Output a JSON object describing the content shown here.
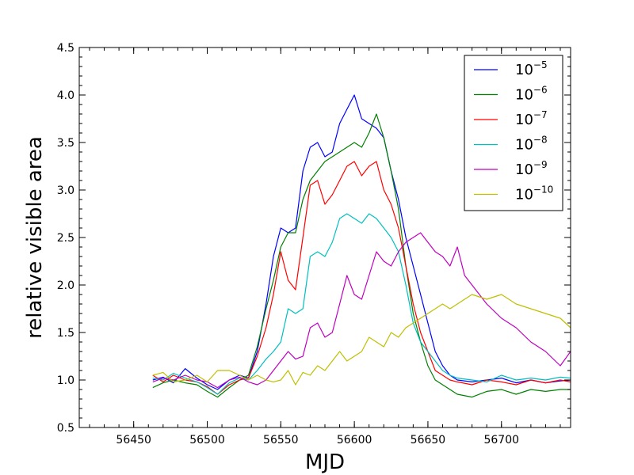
{
  "chart_data": {
    "type": "line",
    "title": "",
    "xlabel": "MJD",
    "ylabel": "relative visible area",
    "xlim": [
      56413,
      56747
    ],
    "ylim": [
      0.5,
      4.5
    ],
    "xticks": [
      56450,
      56500,
      56550,
      56600,
      56650,
      56700
    ],
    "yticks": [
      0.5,
      1.0,
      1.5,
      2.0,
      2.5,
      3.0,
      3.5,
      4.0,
      4.5
    ],
    "grid": false,
    "legend_position": "top-right",
    "series": [
      {
        "name": "10",
        "name_exponent": "−5",
        "color": "#0000ff",
        "x": [
          56463,
          56470,
          56477,
          56485,
          56493,
          56500,
          56507,
          56515,
          56522,
          56528,
          56534,
          56540,
          56545,
          56550,
          56555,
          56560,
          56565,
          56570,
          56575,
          56580,
          56585,
          56590,
          56595,
          56600,
          56605,
          56610,
          56615,
          56620,
          56625,
          56630,
          56635,
          56640,
          56645,
          56650,
          56655,
          56660,
          56665,
          56670,
          56680,
          56690,
          56700,
          56710,
          56720,
          56730,
          56740,
          56747
        ],
        "y": [
          1.0,
          1.03,
          0.97,
          1.12,
          1.02,
          0.95,
          0.9,
          1.0,
          1.05,
          1.02,
          1.3,
          1.8,
          2.3,
          2.6,
          2.55,
          2.6,
          3.2,
          3.45,
          3.5,
          3.35,
          3.4,
          3.7,
          3.85,
          4.0,
          3.75,
          3.7,
          3.65,
          3.55,
          3.2,
          2.9,
          2.5,
          2.2,
          1.9,
          1.6,
          1.3,
          1.15,
          1.05,
          1.0,
          0.98,
          1.0,
          1.02,
          0.97,
          1.0,
          0.97,
          0.99,
          1.0
        ]
      },
      {
        "name": "10",
        "name_exponent": "−6",
        "color": "#008000",
        "x": [
          56463,
          56470,
          56477,
          56485,
          56493,
          56500,
          56507,
          56515,
          56522,
          56528,
          56534,
          56540,
          56545,
          56550,
          56555,
          56560,
          56565,
          56570,
          56575,
          56580,
          56585,
          56590,
          56595,
          56600,
          56605,
          56610,
          56615,
          56620,
          56625,
          56630,
          56635,
          56640,
          56645,
          56650,
          56655,
          56660,
          56665,
          56670,
          56680,
          56690,
          56700,
          56710,
          56720,
          56730,
          56740,
          56747
        ],
        "y": [
          0.92,
          0.97,
          1.0,
          0.97,
          0.95,
          0.88,
          0.82,
          0.92,
          1.0,
          1.05,
          1.35,
          1.75,
          2.05,
          2.4,
          2.55,
          2.55,
          2.9,
          3.1,
          3.2,
          3.3,
          3.35,
          3.4,
          3.45,
          3.5,
          3.45,
          3.6,
          3.8,
          3.55,
          3.2,
          2.8,
          2.2,
          1.7,
          1.4,
          1.15,
          1.0,
          0.95,
          0.9,
          0.85,
          0.82,
          0.88,
          0.9,
          0.85,
          0.9,
          0.88,
          0.9,
          0.9
        ]
      },
      {
        "name": "10",
        "name_exponent": "−7",
        "color": "#ff0000",
        "x": [
          56463,
          56470,
          56477,
          56485,
          56493,
          56500,
          56507,
          56515,
          56522,
          56528,
          56534,
          56540,
          56545,
          56550,
          56555,
          56560,
          56565,
          56570,
          56575,
          56580,
          56585,
          56590,
          56595,
          56600,
          56605,
          56610,
          56615,
          56620,
          56625,
          56630,
          56635,
          56640,
          56645,
          56650,
          56655,
          56660,
          56665,
          56670,
          56680,
          56690,
          56700,
          56710,
          56720,
          56730,
          56740,
          56747
        ],
        "y": [
          1.05,
          0.98,
          1.05,
          1.0,
          0.98,
          0.93,
          0.85,
          0.95,
          1.0,
          1.02,
          1.25,
          1.55,
          1.9,
          2.35,
          2.05,
          1.95,
          2.5,
          3.05,
          3.1,
          2.85,
          2.95,
          3.1,
          3.25,
          3.3,
          3.15,
          3.25,
          3.3,
          3.0,
          2.85,
          2.6,
          2.2,
          1.8,
          1.5,
          1.3,
          1.1,
          1.05,
          1.0,
          0.98,
          0.95,
          1.0,
          0.98,
          0.95,
          1.0,
          0.97,
          1.0,
          0.98
        ]
      },
      {
        "name": "10",
        "name_exponent": "−8",
        "color": "#00bfbf",
        "x": [
          56463,
          56470,
          56477,
          56485,
          56493,
          56500,
          56507,
          56515,
          56522,
          56528,
          56534,
          56540,
          56545,
          56550,
          56555,
          56560,
          56565,
          56570,
          56575,
          56580,
          56585,
          56590,
          56595,
          56600,
          56605,
          56610,
          56615,
          56620,
          56625,
          56630,
          56635,
          56640,
          56645,
          56650,
          56655,
          56660,
          56665,
          56670,
          56680,
          56690,
          56700,
          56710,
          56720,
          56730,
          56740,
          56747
        ],
        "y": [
          1.02,
          1.0,
          1.07,
          1.02,
          0.98,
          0.92,
          0.85,
          0.97,
          1.02,
          1.0,
          1.1,
          1.22,
          1.3,
          1.4,
          1.75,
          1.7,
          1.75,
          2.3,
          2.35,
          2.3,
          2.45,
          2.7,
          2.75,
          2.7,
          2.65,
          2.75,
          2.7,
          2.6,
          2.5,
          2.35,
          2.0,
          1.6,
          1.4,
          1.3,
          1.2,
          1.1,
          1.05,
          1.02,
          1.0,
          0.98,
          1.05,
          1.0,
          1.02,
          1.0,
          1.03,
          1.02
        ]
      },
      {
        "name": "10",
        "name_exponent": "−9",
        "color": "#bf00bf",
        "x": [
          56463,
          56470,
          56477,
          56485,
          56493,
          56500,
          56507,
          56515,
          56522,
          56528,
          56534,
          56540,
          56545,
          56550,
          56555,
          56560,
          56565,
          56570,
          56575,
          56580,
          56585,
          56590,
          56595,
          56600,
          56605,
          56610,
          56615,
          56620,
          56625,
          56630,
          56635,
          56640,
          56645,
          56650,
          56655,
          56660,
          56665,
          56670,
          56675,
          56680,
          56690,
          56700,
          56710,
          56720,
          56730,
          56740,
          56747
        ],
        "y": [
          0.98,
          1.02,
          1.0,
          1.05,
          1.0,
          0.98,
          0.92,
          1.0,
          1.03,
          0.98,
          0.95,
          1.0,
          1.1,
          1.2,
          1.3,
          1.22,
          1.25,
          1.55,
          1.6,
          1.45,
          1.5,
          1.8,
          2.1,
          1.9,
          1.85,
          2.1,
          2.35,
          2.25,
          2.2,
          2.35,
          2.45,
          2.5,
          2.55,
          2.45,
          2.35,
          2.3,
          2.2,
          2.4,
          2.1,
          2.0,
          1.8,
          1.65,
          1.55,
          1.4,
          1.3,
          1.15,
          1.3
        ]
      },
      {
        "name": "10",
        "name_exponent": "−10",
        "color": "#bfbf00",
        "x": [
          56463,
          56470,
          56477,
          56485,
          56493,
          56500,
          56507,
          56515,
          56522,
          56528,
          56534,
          56540,
          56545,
          56550,
          56555,
          56560,
          56565,
          56570,
          56575,
          56580,
          56585,
          56590,
          56595,
          56600,
          56605,
          56610,
          56615,
          56620,
          56625,
          56630,
          56635,
          56640,
          56645,
          56650,
          56655,
          56660,
          56665,
          56670,
          56675,
          56680,
          56690,
          56700,
          56710,
          56720,
          56730,
          56740,
          56747
        ],
        "y": [
          1.05,
          1.08,
          0.98,
          1.0,
          1.05,
          0.98,
          1.1,
          1.1,
          1.05,
          1.0,
          1.05,
          1.0,
          0.98,
          1.0,
          1.1,
          0.95,
          1.08,
          1.05,
          1.15,
          1.1,
          1.2,
          1.3,
          1.2,
          1.25,
          1.3,
          1.45,
          1.4,
          1.35,
          1.5,
          1.45,
          1.55,
          1.6,
          1.65,
          1.7,
          1.75,
          1.8,
          1.75,
          1.8,
          1.85,
          1.9,
          1.85,
          1.9,
          1.8,
          1.75,
          1.7,
          1.65,
          1.55
        ]
      }
    ]
  }
}
